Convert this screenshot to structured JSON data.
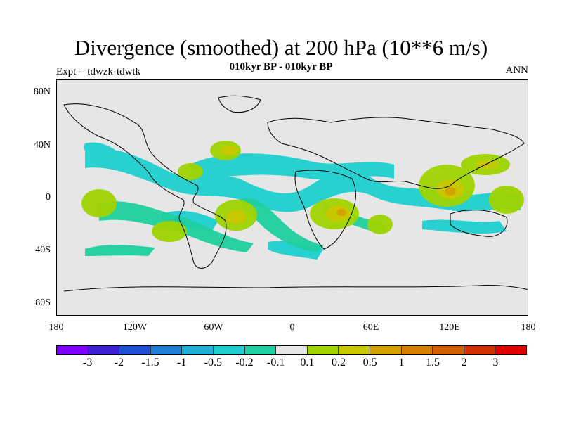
{
  "title": "Divergence (smoothed) at 200 hPa (10**6 m/s)",
  "subtitle": "010kyr BP - 010kyr BP",
  "left_label": "Expt = tdwzk-tdwtk",
  "right_label": "ANN",
  "lat_ticks": [
    "80N",
    "40N",
    "0",
    "40S",
    "80S"
  ],
  "lon_ticks": [
    "180",
    "120W",
    "60W",
    "0",
    "60E",
    "120E",
    "180"
  ],
  "colorbar": {
    "colors": [
      "#7f00ff",
      "#3f1fd4",
      "#1f4fd4",
      "#1f7fd4",
      "#1fafd4",
      "#1fcfcf",
      "#1fcf9f",
      "#e6e6e6",
      "#9fd400",
      "#c8c800",
      "#d4a000",
      "#d47f00",
      "#d45f00",
      "#d42f00",
      "#e00000"
    ],
    "labels": [
      "-3",
      "-2",
      "-1.5",
      "-1",
      "-0.5",
      "-0.2",
      "-0.1",
      "0.1",
      "0.2",
      "0.5",
      "1",
      "1.5",
      "2",
      "3"
    ]
  }
}
